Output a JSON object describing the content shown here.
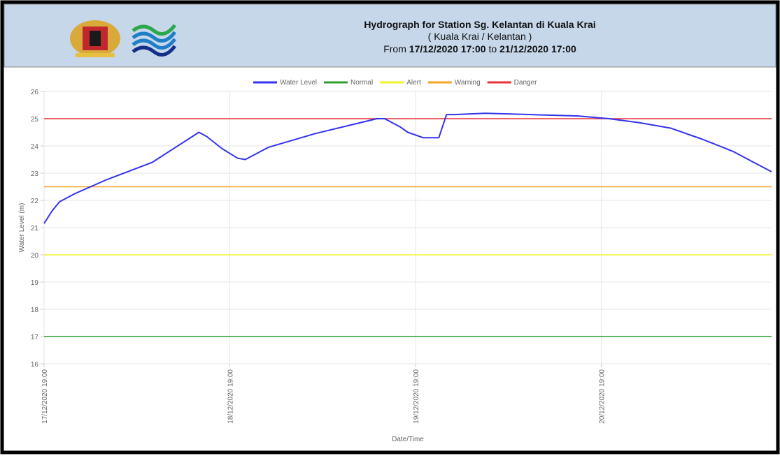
{
  "header": {
    "title": "Hydrograph for Station Sg. Kelantan di Kuala Krai",
    "subtitle": "( Kuala Krai / Kelantan )",
    "range_from_label": "From",
    "range_from": "17/12/2020 17:00",
    "range_to_label": "to",
    "range_to": "21/12/2020 17:00"
  },
  "chart_data": {
    "type": "line",
    "x_label": "Date/Time",
    "y_label": "Water Level (m)",
    "x": [
      "17/12/2020 19:00",
      "17/12/2020 20:00",
      "17/12/2020 21:00",
      "17/12/2020 23:00",
      "18/12/2020 03:00",
      "18/12/2020 09:00",
      "18/12/2020 12:00",
      "18/12/2020 15:00",
      "18/12/2020 16:00",
      "18/12/2020 18:00",
      "18/12/2020 20:00",
      "18/12/2020 21:00",
      "19/12/2020 00:00",
      "19/12/2020 06:00",
      "19/12/2020 14:00",
      "19/12/2020 15:00",
      "19/12/2020 17:00",
      "19/12/2020 18:00",
      "19/12/2020 20:00",
      "19/12/2020 21:00",
      "19/12/2020 22:00",
      "19/12/2020 23:00",
      "20/12/2020 00:00",
      "20/12/2020 04:00",
      "20/12/2020 10:00",
      "20/12/2020 16:00",
      "20/12/2020 20:00",
      "21/12/2020 00:00",
      "21/12/2020 04:00",
      "21/12/2020 08:00",
      "21/12/2020 12:00",
      "21/12/2020 15:00",
      "21/12/2020 17:00"
    ],
    "series": [
      {
        "name": "Water Level",
        "color": "#3333ee",
        "values": [
          21.15,
          21.6,
          21.95,
          22.25,
          22.75,
          23.4,
          23.95,
          24.5,
          24.35,
          23.9,
          23.55,
          23.5,
          23.95,
          24.45,
          25.0,
          25.0,
          24.7,
          24.5,
          24.3,
          24.3,
          24.3,
          25.15,
          25.15,
          25.2,
          25.15,
          25.1,
          25.0,
          24.85,
          24.65,
          24.25,
          23.8,
          23.35,
          23.05
        ]
      }
    ],
    "reference_lines": [
      {
        "name": "Normal",
        "color": "#2e9e2e",
        "value": 17
      },
      {
        "name": "Alert",
        "color": "#f2f230",
        "value": 20
      },
      {
        "name": "Warning",
        "color": "#f5a623",
        "value": 22.5
      },
      {
        "name": "Danger",
        "color": "#e8303a",
        "value": 25
      }
    ],
    "xlim": [
      "17/12/2020 19:00",
      "21/12/2020 17:00"
    ],
    "xticks": [
      "17/12/2020 19:00",
      "18/12/2020 19:00",
      "19/12/2020 19:00",
      "20/12/2020 19:00"
    ],
    "ylim": [
      16,
      26
    ],
    "yticks": [
      16,
      17,
      18,
      19,
      20,
      21,
      22,
      23,
      24,
      25,
      26
    ],
    "grid": true
  }
}
